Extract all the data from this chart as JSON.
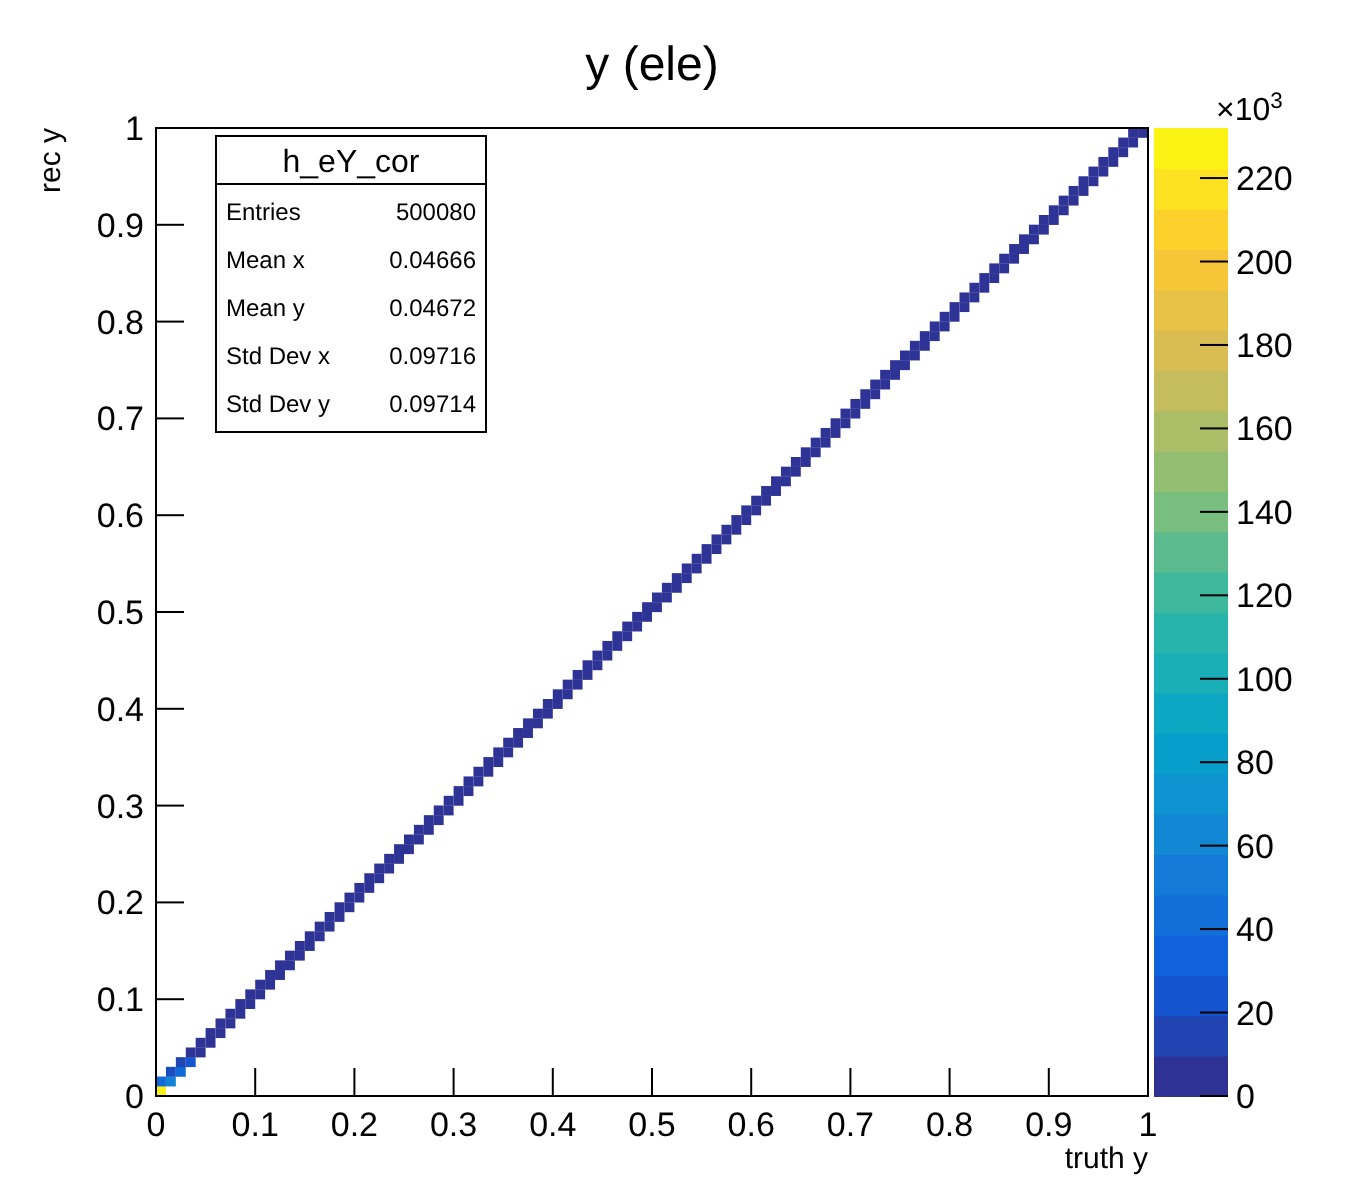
{
  "chart_data": {
    "type": "scatter",
    "title": "y (ele)",
    "xlabel": "truth y",
    "ylabel": "rec y",
    "clabel": "×10$^{3}$",
    "marker": "square",
    "grid": false,
    "xlim": [
      0,
      1
    ],
    "ylim": [
      0,
      1
    ],
    "xticks": [
      0,
      0.1,
      0.2,
      0.3,
      0.4,
      0.5,
      0.6,
      0.7,
      0.8,
      0.9,
      1
    ],
    "yticks": [
      0,
      0.1,
      0.2,
      0.3,
      0.4,
      0.5,
      0.6,
      0.7,
      0.8,
      0.9,
      1
    ],
    "clim": [
      0,
      232
    ],
    "cticks": [
      0,
      20,
      40,
      60,
      80,
      100,
      120,
      140,
      160,
      180,
      200,
      220
    ],
    "annotations": [
      "h_eY_cor",
      "Entries",
      "500080",
      "Mean x",
      "0.04666",
      "Mean y",
      "0.04672",
      "Std Dev x",
      "0.09716",
      "Std Dev y",
      "0.09714"
    ],
    "x": [
      0.005,
      0.005,
      0.015,
      0.015,
      0.025,
      0.025,
      0.035,
      0.035,
      0.045,
      0.045,
      0.055,
      0.055,
      0.065,
      0.065,
      0.075,
      0.075,
      0.085,
      0.085,
      0.095,
      0.095,
      0.105,
      0.105,
      0.115,
      0.115,
      0.125,
      0.125,
      0.135,
      0.135,
      0.145,
      0.145,
      0.155,
      0.155,
      0.165,
      0.165,
      0.175,
      0.175,
      0.185,
      0.185,
      0.195,
      0.195,
      0.205,
      0.205,
      0.215,
      0.215,
      0.225,
      0.225,
      0.235,
      0.235,
      0.245,
      0.245,
      0.255,
      0.255,
      0.265,
      0.265,
      0.275,
      0.275,
      0.285,
      0.285,
      0.295,
      0.295,
      0.305,
      0.305,
      0.315,
      0.315,
      0.325,
      0.325,
      0.335,
      0.335,
      0.345,
      0.345,
      0.355,
      0.355,
      0.365,
      0.365,
      0.375,
      0.375,
      0.385,
      0.385,
      0.395,
      0.395,
      0.405,
      0.405,
      0.415,
      0.415,
      0.425,
      0.425,
      0.435,
      0.435,
      0.445,
      0.445,
      0.455,
      0.455,
      0.465,
      0.465,
      0.475,
      0.475,
      0.485,
      0.485,
      0.495,
      0.495,
      0.505,
      0.505,
      0.515,
      0.515,
      0.525,
      0.525,
      0.535,
      0.535,
      0.545,
      0.545,
      0.555,
      0.555,
      0.565,
      0.565,
      0.575,
      0.575,
      0.585,
      0.585,
      0.595,
      0.595,
      0.605,
      0.605,
      0.615,
      0.615,
      0.625,
      0.625,
      0.635,
      0.635,
      0.645,
      0.645,
      0.655,
      0.655,
      0.665,
      0.665,
      0.675,
      0.675,
      0.685,
      0.685,
      0.695,
      0.695,
      0.705,
      0.705,
      0.715,
      0.715,
      0.725,
      0.725,
      0.735,
      0.735,
      0.745,
      0.745,
      0.755,
      0.755,
      0.765,
      0.765,
      0.775,
      0.775,
      0.785,
      0.785,
      0.795,
      0.795,
      0.805,
      0.805,
      0.815,
      0.815,
      0.825,
      0.825,
      0.835,
      0.835,
      0.845,
      0.845,
      0.855,
      0.855,
      0.865,
      0.865,
      0.875,
      0.875,
      0.885,
      0.885,
      0.895,
      0.895,
      0.905,
      0.905,
      0.915,
      0.915,
      0.925,
      0.925,
      0.935,
      0.935,
      0.945,
      0.945,
      0.955,
      0.955,
      0.965,
      0.965,
      0.975,
      0.975,
      0.985,
      0.985,
      0.995
    ],
    "values": [
      0.005,
      0.015,
      0.015,
      0.025,
      0.025,
      0.035,
      0.035,
      0.045,
      0.045,
      0.055,
      0.055,
      0.065,
      0.065,
      0.075,
      0.075,
      0.085,
      0.085,
      0.095,
      0.095,
      0.105,
      0.105,
      0.115,
      0.115,
      0.125,
      0.125,
      0.135,
      0.135,
      0.145,
      0.145,
      0.155,
      0.155,
      0.165,
      0.165,
      0.175,
      0.175,
      0.185,
      0.185,
      0.195,
      0.195,
      0.205,
      0.205,
      0.215,
      0.215,
      0.225,
      0.225,
      0.235,
      0.235,
      0.245,
      0.245,
      0.255,
      0.255,
      0.265,
      0.265,
      0.275,
      0.275,
      0.285,
      0.285,
      0.295,
      0.295,
      0.305,
      0.305,
      0.315,
      0.315,
      0.325,
      0.325,
      0.335,
      0.335,
      0.345,
      0.345,
      0.355,
      0.355,
      0.365,
      0.365,
      0.375,
      0.375,
      0.385,
      0.385,
      0.395,
      0.395,
      0.405,
      0.405,
      0.415,
      0.415,
      0.425,
      0.425,
      0.435,
      0.435,
      0.445,
      0.445,
      0.455,
      0.455,
      0.465,
      0.465,
      0.475,
      0.475,
      0.485,
      0.485,
      0.495,
      0.495,
      0.505,
      0.505,
      0.515,
      0.515,
      0.525,
      0.525,
      0.535,
      0.535,
      0.545,
      0.545,
      0.555,
      0.555,
      0.565,
      0.565,
      0.575,
      0.575,
      0.585,
      0.585,
      0.595,
      0.595,
      0.605,
      0.605,
      0.615,
      0.615,
      0.625,
      0.625,
      0.635,
      0.635,
      0.645,
      0.645,
      0.655,
      0.655,
      0.665,
      0.665,
      0.675,
      0.675,
      0.685,
      0.685,
      0.695,
      0.695,
      0.705,
      0.705,
      0.715,
      0.715,
      0.725,
      0.725,
      0.735,
      0.735,
      0.745,
      0.745,
      0.755,
      0.755,
      0.765,
      0.765,
      0.775,
      0.775,
      0.785,
      0.785,
      0.795,
      0.795,
      0.805,
      0.805,
      0.815,
      0.815,
      0.825,
      0.825,
      0.835,
      0.835,
      0.845,
      0.845,
      0.855,
      0.855,
      0.865,
      0.865,
      0.875,
      0.875,
      0.885,
      0.885,
      0.895,
      0.895,
      0.905,
      0.905,
      0.915,
      0.915,
      0.925,
      0.925,
      0.935,
      0.935,
      0.945,
      0.945,
      0.955,
      0.955,
      0.965,
      0.965,
      0.975,
      0.975,
      0.985,
      0.985,
      0.995,
      0.995
    ],
    "cvalues": [
      225,
      40,
      60,
      20,
      40,
      15,
      25,
      5,
      5,
      5,
      5,
      5,
      5,
      5,
      5,
      5,
      5,
      5,
      5,
      5,
      5,
      5,
      5,
      5,
      5,
      5,
      5,
      5,
      5,
      5,
      5,
      5,
      5,
      5,
      5,
      5,
      5,
      5,
      5,
      5,
      5,
      5,
      5,
      5,
      5,
      5,
      5,
      5,
      5,
      5,
      5,
      5,
      5,
      5,
      5,
      5,
      5,
      5,
      5,
      5,
      5,
      5,
      5,
      5,
      5,
      5,
      5,
      5,
      5,
      5,
      5,
      5,
      5,
      5,
      5,
      5,
      5,
      5,
      5,
      5,
      5,
      5,
      5,
      5,
      5,
      5,
      5,
      5,
      5,
      5,
      5,
      5,
      5,
      5,
      5,
      5,
      5,
      5,
      5,
      5,
      5,
      5,
      5,
      5,
      5,
      5,
      5,
      5,
      5,
      5,
      5,
      5,
      5,
      5,
      5,
      5,
      5,
      5,
      5,
      5,
      5,
      5,
      5,
      5,
      5,
      5,
      5,
      5,
      5,
      5,
      5,
      5,
      5,
      5,
      5,
      5,
      5,
      5,
      5,
      5,
      5,
      5,
      5,
      5,
      5,
      5,
      5,
      5,
      5,
      5,
      5,
      5,
      5,
      5,
      5,
      5,
      5,
      5,
      5,
      5,
      5,
      5,
      5,
      5,
      5,
      5,
      5,
      5,
      5,
      5,
      5,
      5,
      5,
      5,
      5,
      5,
      5,
      5,
      5,
      5,
      5,
      5,
      5,
      5,
      5,
      5,
      5,
      5,
      5,
      5,
      5,
      5,
      5,
      5,
      5,
      5,
      5,
      5,
      5
    ]
  }
}
